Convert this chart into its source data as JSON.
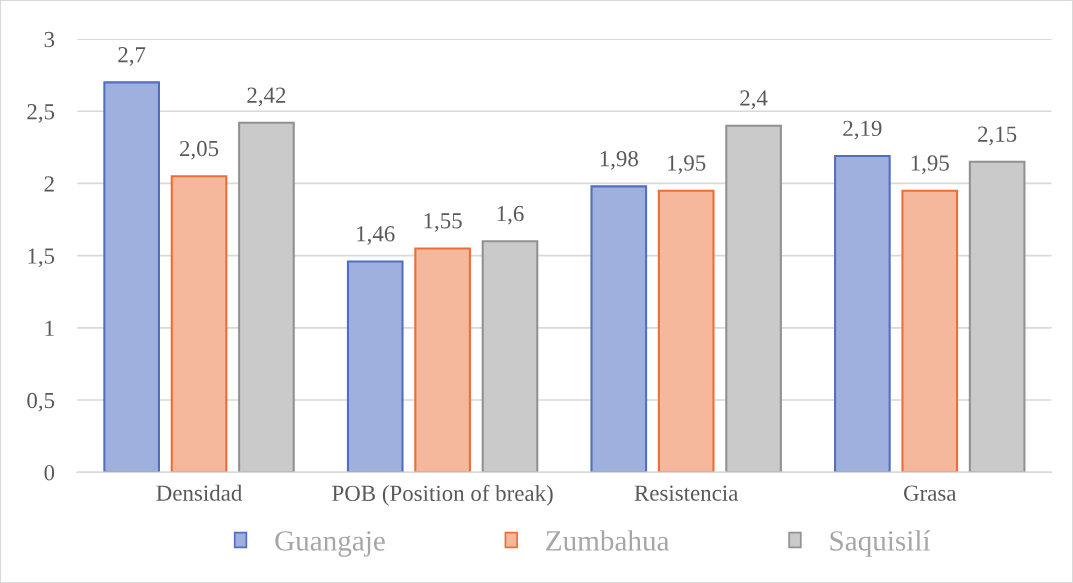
{
  "chart_data": {
    "type": "bar",
    "categories": [
      "Densidad",
      "POB (Position of break)",
      "Resistencia",
      "Grasa"
    ],
    "series": [
      {
        "name": "Guangaje",
        "color": "#a0b0de",
        "values": [
          2.7,
          1.46,
          1.98,
          2.19
        ],
        "value_labels": [
          "2,7",
          "1,46",
          "1,98",
          "2,19"
        ]
      },
      {
        "name": "Zumbahua",
        "color": "#f5b89d",
        "values": [
          2.05,
          1.55,
          1.95,
          1.95
        ],
        "value_labels": [
          "2,05",
          "1,55",
          "1,95",
          "1,95"
        ]
      },
      {
        "name": "Saquisilí",
        "color": "#cacaca",
        "values": [
          2.42,
          1.6,
          2.4,
          2.15
        ],
        "value_labels": [
          "2,42",
          "1,6",
          "2,4",
          "2,15"
        ]
      }
    ],
    "ylim": [
      0,
      3
    ],
    "yticks": [
      0,
      {
        "value": 0.5,
        "label": "0,5"
      },
      1,
      {
        "value": 1.5,
        "label": "1,5"
      },
      2,
      {
        "value": 2.5,
        "label": "2,5"
      },
      3
    ],
    "grid": "y",
    "legend": "bottom"
  }
}
